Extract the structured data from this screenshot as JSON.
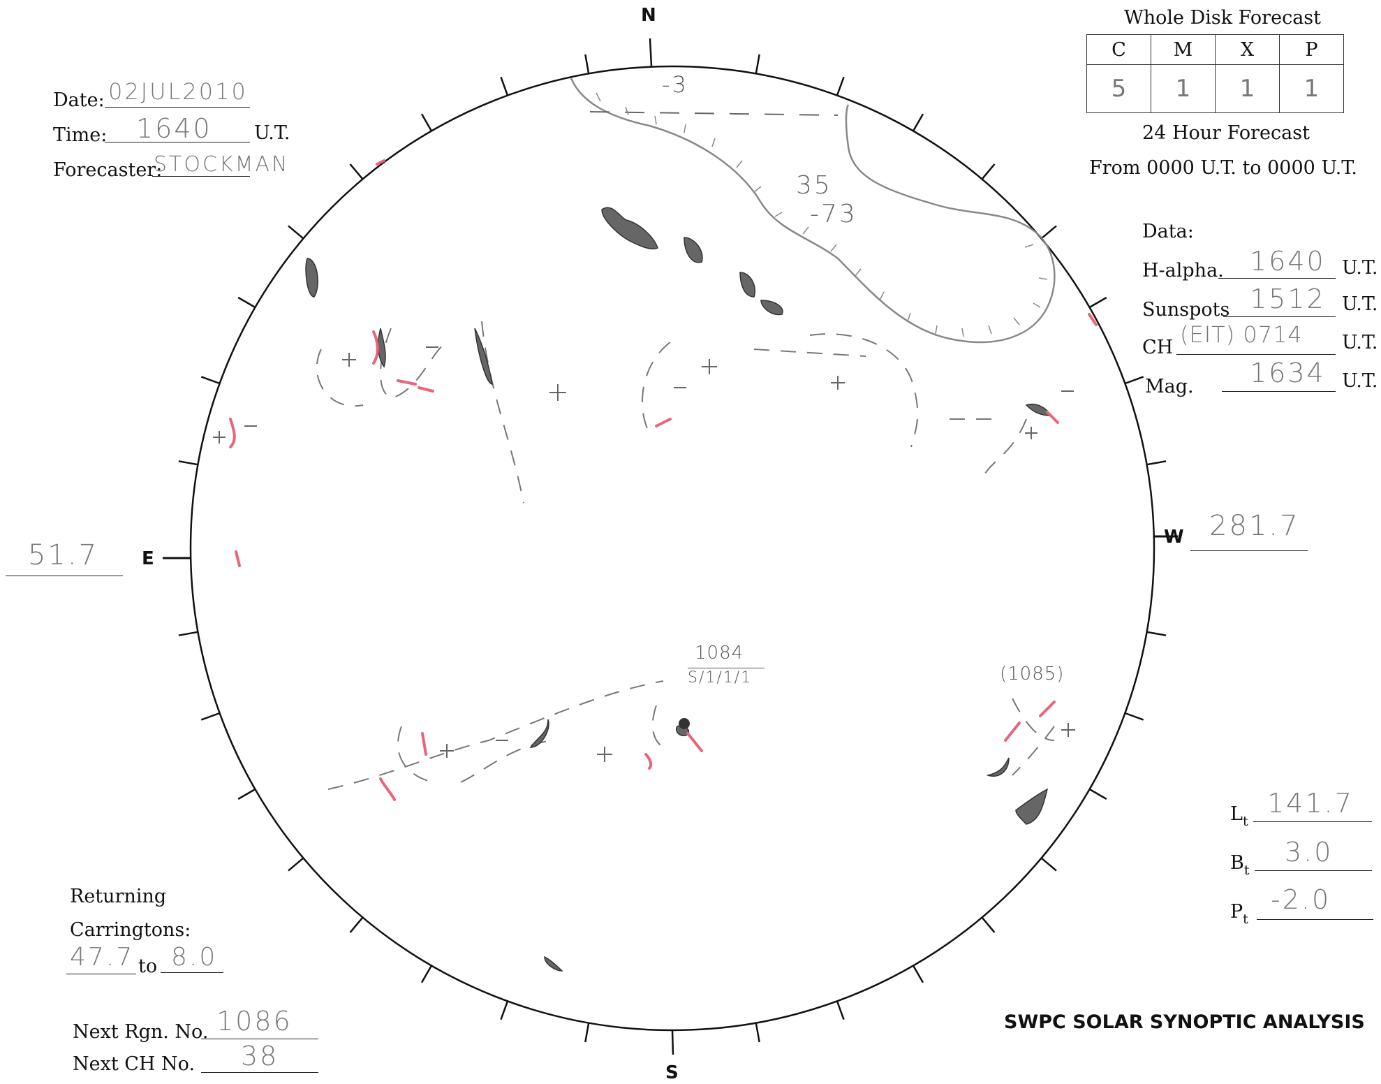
{
  "header": {
    "date_label": "Date:",
    "date_value": "02JUL2010",
    "time_label": "Time:",
    "time_value": "1640",
    "time_unit": "U.T.",
    "forecaster_label": "Forecaster:",
    "forecaster_value": "STOCKMAN"
  },
  "forecast": {
    "title": "Whole Disk Forecast",
    "columns": [
      "C",
      "M",
      "X",
      "P"
    ],
    "values": [
      "5",
      "1",
      "1",
      "1"
    ],
    "subtitle": "24 Hour Forecast",
    "range": "From 0000 U.T. to 0000 U.T."
  },
  "data_panel": {
    "heading": "Data:",
    "rows": [
      {
        "label": "H-alpha.",
        "value": "1640",
        "unit": "U.T."
      },
      {
        "label": "Sunspots",
        "value": "1512",
        "unit": "U.T."
      },
      {
        "label": "CH",
        "value": "(EIT) 0714",
        "unit": "U.T."
      },
      {
        "label": "Mag.",
        "value": "1634",
        "unit": "U.T."
      }
    ]
  },
  "compass": {
    "north": "N",
    "south": "S",
    "east": "E",
    "west": "W"
  },
  "east_value": "51.7",
  "west_value": "281.7",
  "disk_annotations": {
    "ch_label_1": "-3",
    "ch_label_2": "35",
    "ch_label_3": "-73",
    "region_1084": "1084",
    "region_1084_class": "S/1/1/1",
    "region_1085": "(1085)"
  },
  "ephemeris": {
    "lt_label": "L",
    "lt_sub": "t",
    "lt_value": "141.7",
    "bt_label": "B",
    "bt_sub": "t",
    "bt_value": "3.0",
    "pt_label": "P",
    "pt_sub": "t",
    "pt_value": "-2.0"
  },
  "returning": {
    "label1": "Returning",
    "label2": "Carringtons:",
    "from": "47.7",
    "to_label": "to",
    "to": "8.0"
  },
  "next": {
    "rgn_label": "Next Rgn. No.",
    "rgn_value": "1086",
    "ch_label": "Next CH No.",
    "ch_value": "38"
  },
  "footer_title": "SWPC SOLAR SYNOPTIC ANALYSIS"
}
